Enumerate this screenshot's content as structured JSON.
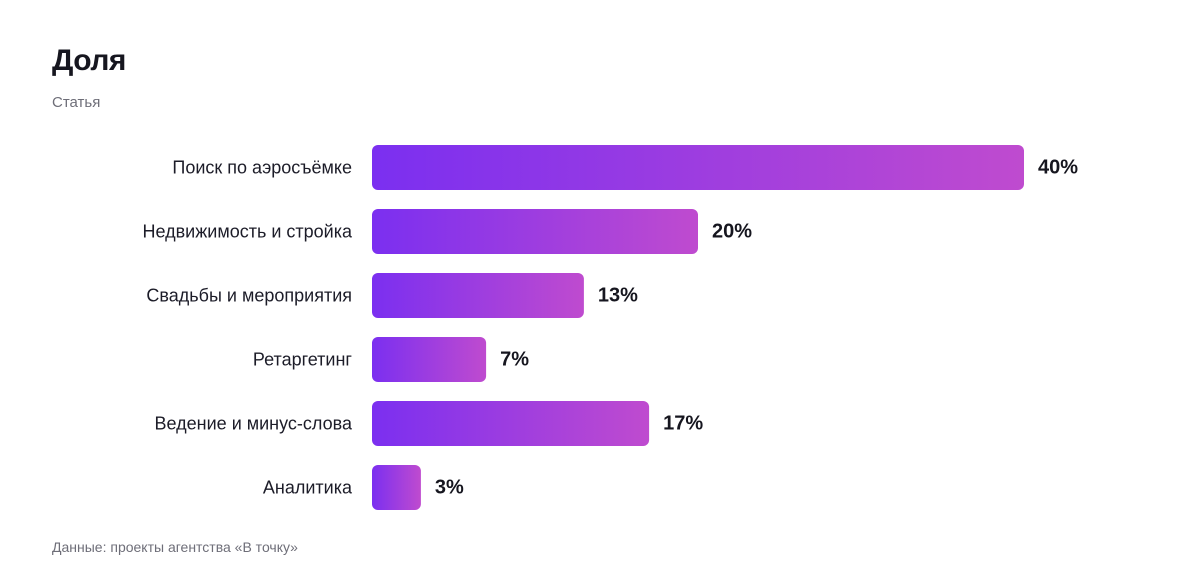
{
  "chart_data": {
    "type": "bar",
    "orientation": "horizontal",
    "title": "Доля",
    "subtitle": "Статья",
    "source": "Данные: проекты агентства «В точку»",
    "categories": [
      "Поиск по аэросъёмке",
      "Недвижимость и стройка",
      "Свадьбы и мероприятия",
      "Ретаргетинг",
      "Ведение и минус-слова",
      "Аналитика"
    ],
    "values": [
      40,
      20,
      13,
      7,
      17,
      3
    ],
    "value_labels": [
      "40%",
      "20%",
      "13%",
      "7%",
      "17%",
      "3%"
    ],
    "unit": "%",
    "grid": false,
    "legend": "none",
    "colors": {
      "bar_start": "#7b2ff0",
      "bar_end": "#bf4bcf"
    }
  }
}
